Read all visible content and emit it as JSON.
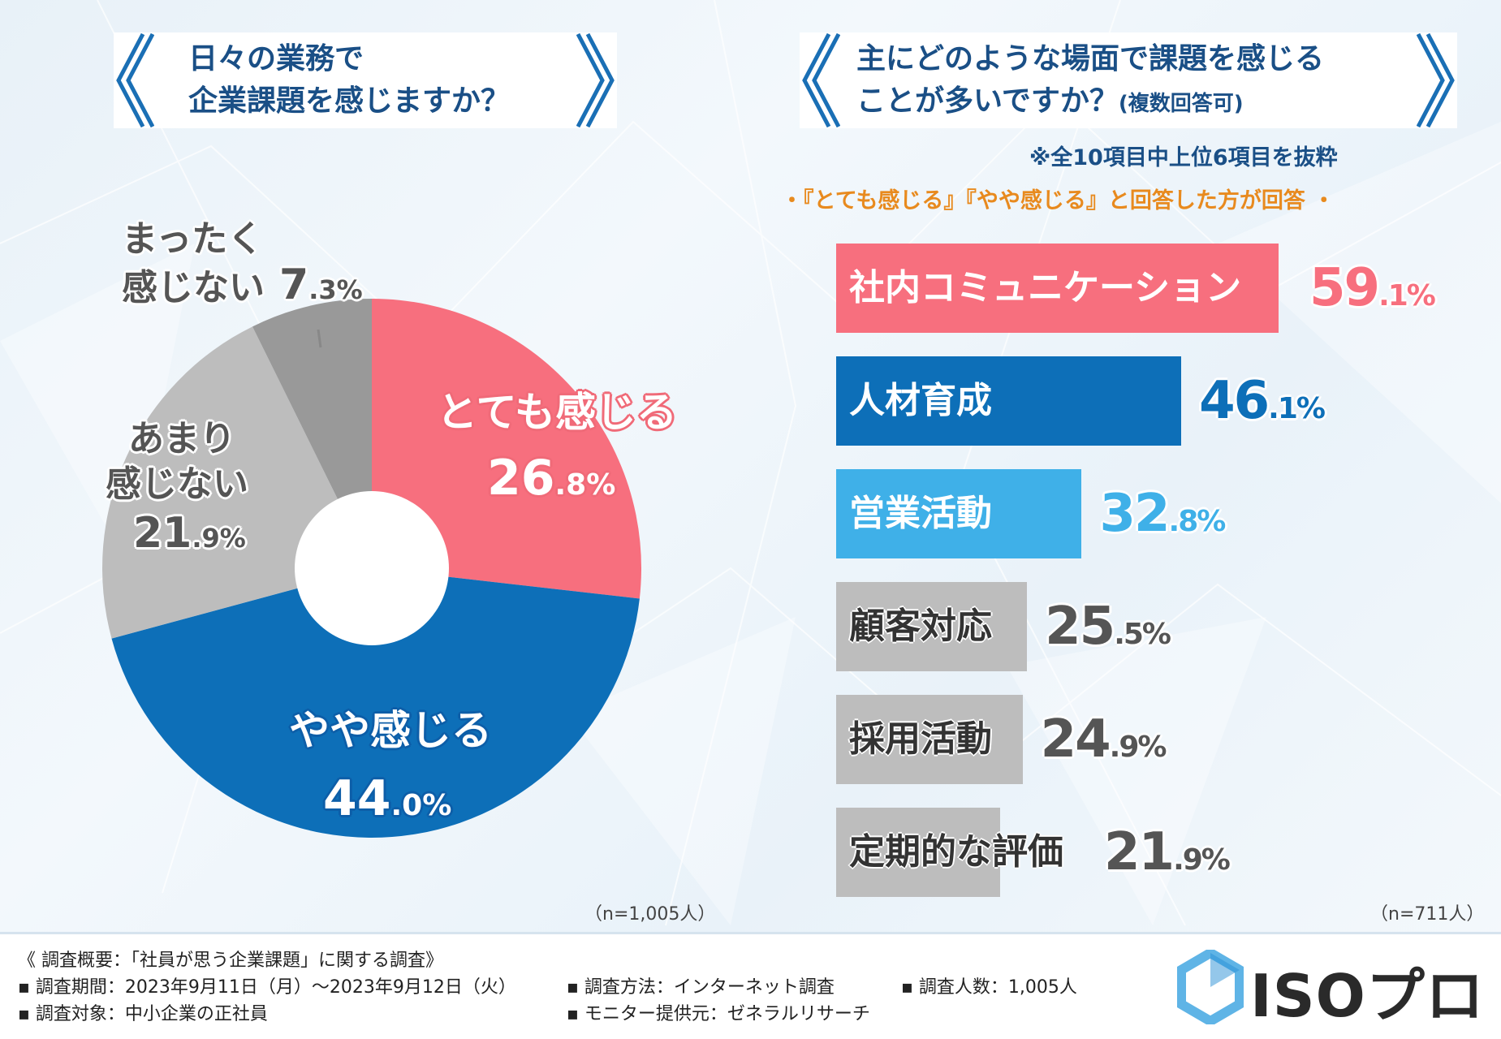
{
  "left_header": {
    "line1": "日々の業務で",
    "line2": "企業課題を感じますか？"
  },
  "right_header": {
    "line1": "主にどのような場面で課題を感じる",
    "line2_main": "ことが多いですか？",
    "line2_sub": "(複数回答可)"
  },
  "notes": {
    "excerpt": "※全10項目中上位6項目を抜粋",
    "respondents": "・『とても感じる』『やや感じる』と回答した方が回答 ・"
  },
  "colors": {
    "pink": "#f76f7e",
    "blue": "#0d6fb8",
    "light_blue": "#3fb0e8",
    "gray_light": "#bdbdbd",
    "gray_dark": "#999999",
    "header_text": "#1a4f86",
    "orange": "#e88a1e"
  },
  "chart_data": [
    {
      "type": "pie",
      "title": "日々の業務で企業課題を感じますか？",
      "slices": [
        {
          "label": "とても感じる",
          "value": 26.8,
          "value_text": [
            "26",
            ".8%"
          ],
          "color": "#f76f7e"
        },
        {
          "label": "やや感じる",
          "value": 44.0,
          "value_text": [
            "44",
            ".0%"
          ],
          "color": "#0d6fb8"
        },
        {
          "label": "あまり感じない",
          "label_lines": [
            "あまり",
            "感じない"
          ],
          "value": 21.9,
          "value_text": [
            "21",
            ".9%"
          ],
          "color": "#bdbdbd"
        },
        {
          "label": "まったく感じない",
          "label_lines": [
            "まったく",
            "感じない"
          ],
          "value": 7.3,
          "value_text": [
            "7",
            ".3%"
          ],
          "color": "#999999"
        }
      ],
      "n": "（n=1,005人）"
    },
    {
      "type": "bar",
      "title": "主にどのような場面で課題を感じることが多いですか？(複数回答可)",
      "categories": [
        "社内コミュニケーション",
        "人材育成",
        "営業活動",
        "顧客対応",
        "採用活動",
        "定期的な評価"
      ],
      "values": [
        59.1,
        46.1,
        32.8,
        25.5,
        24.9,
        21.9
      ],
      "value_text": [
        [
          "59",
          ".1%"
        ],
        [
          "46",
          ".1%"
        ],
        [
          "32",
          ".8%"
        ],
        [
          "25",
          ".5%"
        ],
        [
          "24",
          ".9%"
        ],
        [
          "21",
          ".9%"
        ]
      ],
      "bar_colors": [
        "#f76f7e",
        "#0d6fb8",
        "#3fb0e8",
        "#bdbdbd",
        "#bdbdbd",
        "#bdbdbd"
      ],
      "label_colors": [
        "#ffffff",
        "#ffffff",
        "#ffffff",
        "#333333",
        "#333333",
        "#333333"
      ],
      "value_colors": [
        "#f76f7e",
        "#0d6fb8",
        "#3fb0e8",
        "#555555",
        "#555555",
        "#555555"
      ],
      "n": "（n=711人）"
    }
  ],
  "footer": {
    "overview": "《 調査概要：「社員が思う企業課題」に関する調査》",
    "period": "▪ 調査期間：2023年9月11日（月）～2023年9月12日（火）",
    "target": "▪ 調査対象：中小企業の正社員",
    "method": "▪ 調査方法：インターネット調査",
    "provider": "▪ モニター提供元：ゼネラルリサーチ",
    "count": "▪ 調査人数：1,005人",
    "logo": "ISOプロ"
  }
}
